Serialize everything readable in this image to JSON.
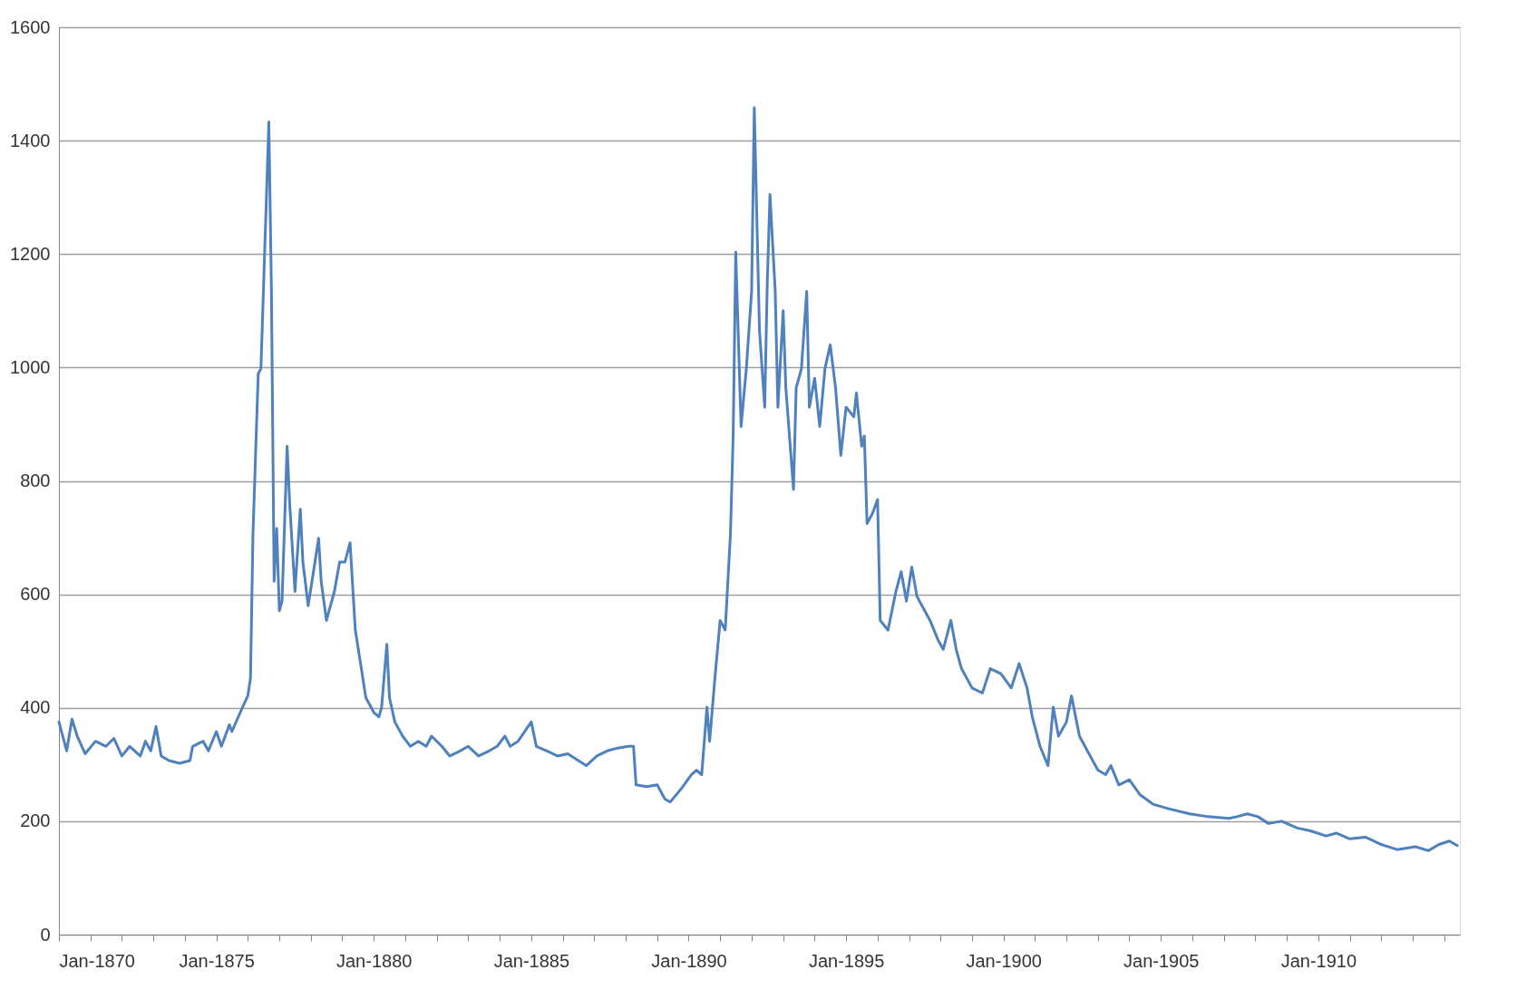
{
  "chart_data": {
    "type": "line",
    "x": [
      "1870-01",
      "1870-04",
      "1870-06",
      "1870-08",
      "1870-11",
      "1871-03",
      "1871-07",
      "1871-10",
      "1872-01",
      "1872-04",
      "1872-08",
      "1872-10",
      "1872-12",
      "1873-02",
      "1873-04",
      "1873-07",
      "1873-11",
      "1874-03",
      "1874-04",
      "1874-08",
      "1874-10",
      "1875-01",
      "1875-03",
      "1875-06",
      "1875-07",
      "1875-09",
      "1875-11",
      "1876-01",
      "1876-02",
      "1876-03",
      "1876-05",
      "1876-06",
      "1876-09",
      "1876-10",
      "1876-11",
      "1876-12",
      "1877-01",
      "1877-02",
      "1877-04",
      "1877-05",
      "1877-07",
      "1877-09",
      "1877-10",
      "1877-12",
      "1878-02",
      "1878-04",
      "1878-05",
      "1878-07",
      "1878-10",
      "1878-12",
      "1879-02",
      "1879-04",
      "1879-06",
      "1879-08",
      "1879-10",
      "1880-01",
      "1880-03",
      "1880-04",
      "1880-06",
      "1880-07",
      "1880-09",
      "1880-12",
      "1881-03",
      "1881-06",
      "1881-09",
      "1881-11",
      "1882-03",
      "1882-06",
      "1882-10",
      "1883-01",
      "1883-05",
      "1883-09",
      "1883-12",
      "1884-03",
      "1884-05",
      "1884-08",
      "1885-01",
      "1885-03",
      "1885-07",
      "1885-11",
      "1886-03",
      "1886-07",
      "1886-10",
      "1887-02",
      "1887-06",
      "1887-10",
      "1888-02",
      "1888-04",
      "1888-05",
      "1888-09",
      "1889-01",
      "1889-04",
      "1889-06",
      "1889-10",
      "1890-02",
      "1890-04",
      "1890-06",
      "1890-08",
      "1890-09",
      "1890-11",
      "1891-01",
      "1891-03",
      "1891-05",
      "1891-06",
      "1891-07",
      "1891-09",
      "1891-10",
      "1891-11",
      "1892-01",
      "1892-02",
      "1892-04",
      "1892-06",
      "1892-07",
      "1892-08",
      "1892-10",
      "1892-11",
      "1893-01",
      "1893-02",
      "1893-05",
      "1893-06",
      "1893-08",
      "1893-10",
      "1893-11",
      "1894-01",
      "1894-03",
      "1894-05",
      "1894-07",
      "1894-09",
      "1894-11",
      "1895-01",
      "1895-04",
      "1895-05",
      "1895-07",
      "1895-08",
      "1895-09",
      "1895-11",
      "1896-01",
      "1896-02",
      "1896-05",
      "1896-08",
      "1896-10",
      "1896-12",
      "1897-02",
      "1897-04",
      "1897-05",
      "1897-07",
      "1897-09",
      "1897-12",
      "1898-02",
      "1898-05",
      "1898-07",
      "1898-09",
      "1899-01",
      "1899-05",
      "1899-08",
      "1899-12",
      "1900-04",
      "1900-07",
      "1900-10",
      "1900-12",
      "1901-03",
      "1901-06",
      "1901-08",
      "1901-10",
      "1902-01",
      "1902-03",
      "1902-06",
      "1902-09",
      "1903-01",
      "1903-04",
      "1903-06",
      "1903-09",
      "1904-01",
      "1904-05",
      "1904-10",
      "1905-04",
      "1905-12",
      "1906-07",
      "1907-03",
      "1907-06",
      "1907-10",
      "1908-02",
      "1908-06",
      "1908-11",
      "1909-05",
      "1909-10",
      "1910-04",
      "1910-08",
      "1911-01",
      "1911-07",
      "1912-01",
      "1912-07",
      "1913-02",
      "1913-07",
      "1913-11",
      "1914-03",
      "1914-06"
    ],
    "series": [
      {
        "color": "#4f81bd",
        "values": [
          375,
          324,
          380,
          350,
          319,
          341,
          332,
          346,
          315,
          332,
          315,
          341,
          324,
          367,
          315,
          307,
          302,
          307,
          332,
          341,
          324,
          358,
          332,
          370,
          358,
          380,
          401,
          421,
          452,
          708,
          989,
          998,
          1433,
          1134,
          623,
          716,
          571,
          588,
          861,
          759,
          605,
          750,
          657,
          580,
          640,
          699,
          623,
          554,
          605,
          657,
          657,
          691,
          537,
          478,
          418,
          392,
          384,
          401,
          512,
          418,
          375,
          350,
          332,
          341,
          332,
          350,
          332,
          315,
          324,
          332,
          315,
          324,
          332,
          350,
          332,
          341,
          375,
          332,
          324,
          315,
          319,
          307,
          298,
          315,
          324,
          329,
          332,
          332,
          264,
          261,
          264,
          239,
          234,
          256,
          282,
          290,
          282,
          401,
          341,
          452,
          554,
          537,
          708,
          879,
          1203,
          896,
          947,
          998,
          1134,
          1458,
          1066,
          930,
          1151,
          1305,
          1134,
          930,
          1100,
          964,
          785,
          964,
          998,
          1134,
          930,
          981,
          896,
          998,
          1040,
          964,
          845,
          930,
          913,
          955,
          861,
          879,
          725,
          742,
          767,
          554,
          537,
          605,
          640,
          588,
          648,
          597,
          588,
          571,
          554,
          520,
          503,
          554,
          503,
          469,
          435,
          426,
          469,
          460,
          435,
          478,
          435,
          384,
          332,
          298,
          401,
          350,
          375,
          421,
          350,
          324,
          290,
          282,
          298,
          264,
          273,
          247,
          230,
          222,
          213,
          208,
          205,
          208,
          213,
          208,
          196,
          200,
          188,
          183,
          174,
          179,
          169,
          172,
          159,
          150,
          155,
          148,
          159,
          165,
          157
        ]
      }
    ],
    "xlim": [
      "1870-01",
      "1914-07"
    ],
    "xticks": [
      {
        "value": "1870-01",
        "label": "Jan-1870"
      },
      {
        "value": "1871-01",
        "label": null
      },
      {
        "value": "1872-01",
        "label": null
      },
      {
        "value": "1873-01",
        "label": null
      },
      {
        "value": "1874-01",
        "label": null
      },
      {
        "value": "1875-01",
        "label": "Jan-1875"
      },
      {
        "value": "1876-01",
        "label": null
      },
      {
        "value": "1877-01",
        "label": null
      },
      {
        "value": "1878-01",
        "label": null
      },
      {
        "value": "1879-01",
        "label": null
      },
      {
        "value": "1880-01",
        "label": "Jan-1880"
      },
      {
        "value": "1881-01",
        "label": null
      },
      {
        "value": "1882-01",
        "label": null
      },
      {
        "value": "1883-01",
        "label": null
      },
      {
        "value": "1884-01",
        "label": null
      },
      {
        "value": "1885-01",
        "label": "Jan-1885"
      },
      {
        "value": "1886-01",
        "label": null
      },
      {
        "value": "1887-01",
        "label": null
      },
      {
        "value": "1888-01",
        "label": null
      },
      {
        "value": "1889-01",
        "label": null
      },
      {
        "value": "1890-01",
        "label": "Jan-1890"
      },
      {
        "value": "1891-01",
        "label": null
      },
      {
        "value": "1892-01",
        "label": null
      },
      {
        "value": "1893-01",
        "label": null
      },
      {
        "value": "1894-01",
        "label": null
      },
      {
        "value": "1895-01",
        "label": "Jan-1895"
      },
      {
        "value": "1896-01",
        "label": null
      },
      {
        "value": "1897-01",
        "label": null
      },
      {
        "value": "1898-01",
        "label": null
      },
      {
        "value": "1899-01",
        "label": null
      },
      {
        "value": "1900-01",
        "label": "Jan-1900"
      },
      {
        "value": "1901-01",
        "label": null
      },
      {
        "value": "1902-01",
        "label": null
      },
      {
        "value": "1903-01",
        "label": null
      },
      {
        "value": "1904-01",
        "label": null
      },
      {
        "value": "1905-01",
        "label": "Jan-1905"
      },
      {
        "value": "1906-01",
        "label": null
      },
      {
        "value": "1907-01",
        "label": null
      },
      {
        "value": "1908-01",
        "label": null
      },
      {
        "value": "1909-01",
        "label": null
      },
      {
        "value": "1910-01",
        "label": "Jan-1910"
      },
      {
        "value": "1911-01",
        "label": null
      },
      {
        "value": "1912-01",
        "label": null
      },
      {
        "value": "1913-01",
        "label": null
      },
      {
        "value": "1914-01",
        "label": null
      }
    ],
    "ylim": [
      0,
      1600
    ],
    "yticks": [
      0,
      200,
      400,
      600,
      800,
      1000,
      1200,
      1400,
      1600
    ],
    "grid": "y",
    "marker": "none",
    "line_style": "solid"
  }
}
